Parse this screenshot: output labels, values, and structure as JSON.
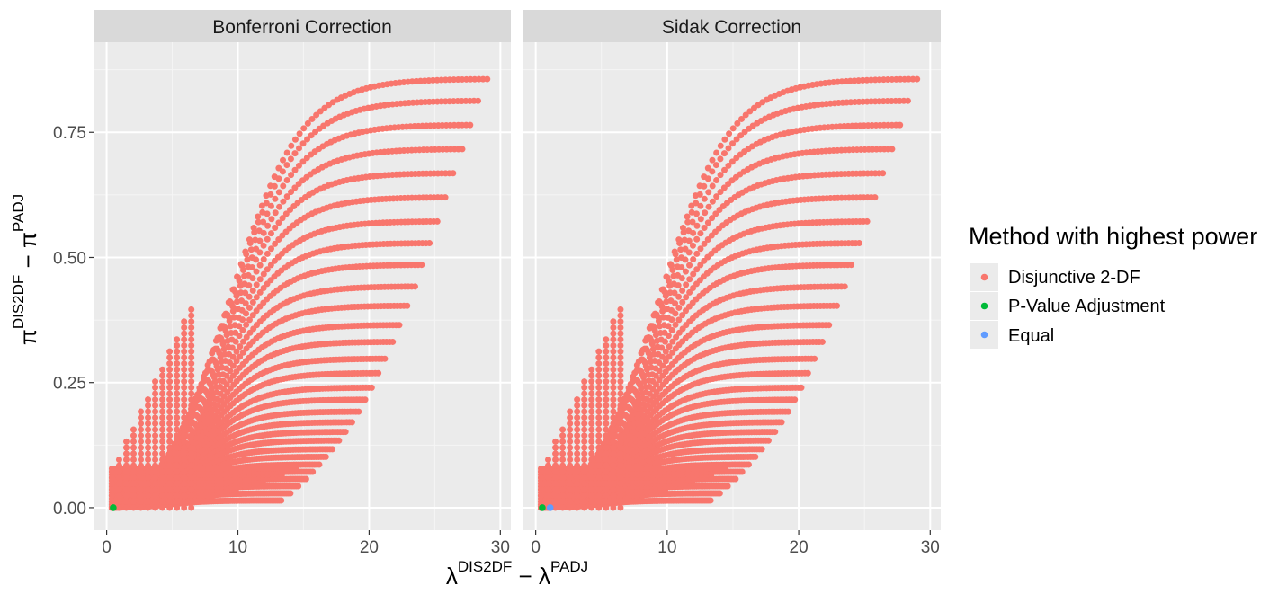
{
  "chart_data": {
    "type": "scatter",
    "facets": [
      "Bonferroni Correction",
      "Sidak Correction"
    ],
    "xlabel": {
      "base": "λ",
      "sup1": "DIS2DF",
      "op": " − ",
      "base2": "λ",
      "sup2": "PADJ"
    },
    "ylabel": {
      "base": "π",
      "sup1": "DIS2DF",
      "op": " − ",
      "base2": "π",
      "sup2": "PADJ"
    },
    "xlim": [
      -1,
      30.8
    ],
    "ylim": [
      -0.045,
      0.93
    ],
    "x_ticks": [
      0,
      10,
      20,
      30
    ],
    "x_tick_labels": [
      "0",
      "10",
      "20",
      "30"
    ],
    "y_ticks": [
      0.0,
      0.25,
      0.5,
      0.75
    ],
    "y_tick_labels": [
      "0.00",
      "0.25",
      "0.50",
      "0.75"
    ],
    "grid": true,
    "legend": {
      "title": "Method with highest power",
      "position": "right",
      "entries": [
        {
          "label": "Disjunctive 2-DF",
          "color": "#F8766D"
        },
        {
          "label": "P-Value Adjustment",
          "color": "#00BA38"
        },
        {
          "label": "Equal",
          "color": "#619CFF"
        }
      ]
    },
    "curve_family": {
      "description_note": "Each series traces a sigmoid-shaped arc from near the origin to its plateau; values read off the axes.",
      "curves_end_x": [
        29.0,
        28.3,
        27.7,
        27.1,
        26.4,
        25.8,
        25.2,
        24.6,
        24.0,
        23.5,
        22.9,
        22.3,
        21.8,
        21.2,
        20.7,
        20.2,
        19.7,
        19.2,
        18.7,
        18.2,
        17.7,
        17.2,
        16.7,
        16.2,
        15.7,
        15.2,
        14.6,
        14.0,
        13.3
      ],
      "curves_end_y": [
        0.89,
        0.845,
        0.795,
        0.745,
        0.695,
        0.645,
        0.595,
        0.55,
        0.505,
        0.46,
        0.42,
        0.38,
        0.345,
        0.31,
        0.28,
        0.25,
        0.225,
        0.2,
        0.178,
        0.158,
        0.14,
        0.122,
        0.106,
        0.09,
        0.075,
        0.06,
        0.045,
        0.03,
        0.015
      ]
    },
    "special_points": [
      {
        "facet": "Bonferroni Correction",
        "x": 0.5,
        "y": 0.0,
        "group": "P-Value Adjustment"
      },
      {
        "facet": "Sidak Correction",
        "x": 0.5,
        "y": 0.0,
        "group": "P-Value Adjustment"
      },
      {
        "facet": "Sidak Correction",
        "x": 1.1,
        "y": 0.0,
        "group": "Equal"
      }
    ]
  }
}
